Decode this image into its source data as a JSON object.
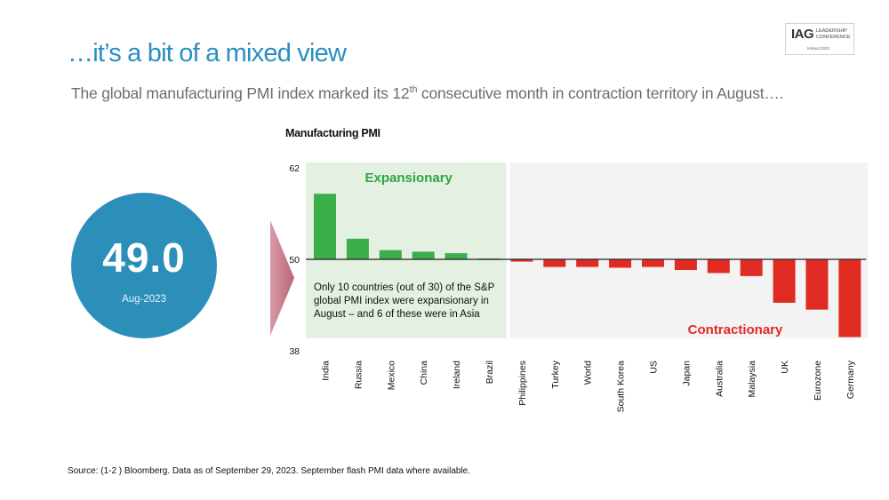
{
  "slide": {
    "title": "…it’s a bit of a mixed view",
    "subtitle_pre": "The global manufacturing PMI index marked its 12",
    "subtitle_sup": "th",
    "subtitle_post": " consecutive month in contraction territory in August….",
    "logo": {
      "brand": "IAG",
      "event": "LEADERSHIP CONFERENCE",
      "edition": "Ireland 2023"
    },
    "headline_value": "49.0",
    "headline_period": "Aug-2023",
    "note": "Only 10 countries (out of 30) of the S&P global PMI index were expansionary in August – and 6 of these were in Asia",
    "source": "Source:  (1-2 ) Bloomberg. Data as of September 29, 2023. September flash PMI data where available."
  },
  "chart_data": {
    "type": "bar",
    "title": "Manufacturing PMI",
    "baseline": 50,
    "ylim": [
      38,
      62
    ],
    "yticks": [
      62,
      50,
      38
    ],
    "region_labels": {
      "expansionary": "Expansionary",
      "contractionary": "Contractionary"
    },
    "categories": [
      "India",
      "Russia",
      "Mexico",
      "China",
      "Ireland",
      "Brazil",
      "Philippines",
      "Turkey",
      "World",
      "South Korea",
      "US",
      "Japan",
      "Australia",
      "Malaysia",
      "UK",
      "Eurozone",
      "Germany"
    ],
    "values": [
      58.6,
      52.7,
      51.2,
      51.0,
      50.8,
      50.1,
      49.7,
      49.0,
      49.0,
      48.9,
      49.0,
      48.6,
      48.2,
      47.8,
      44.3,
      43.4,
      39.8
    ],
    "colors": {
      "positive": "#3aae49",
      "negative": "#e02b22",
      "expansionary_bg": "#e3f0e2",
      "contractionary_bg": "#f3f3f3"
    },
    "flags": [
      "india-flag",
      "russia-flag",
      "mexico-flag",
      "china-flag",
      "ireland-flag",
      "brazil-flag",
      "philippines-flag",
      "turkey-flag",
      "world-globe-icon",
      "south-korea-flag",
      "us-flag",
      "japan-flag",
      "australia-flag",
      "malaysia-flag",
      "uk-flag",
      "eurozone-flag",
      "germany-flag"
    ]
  }
}
